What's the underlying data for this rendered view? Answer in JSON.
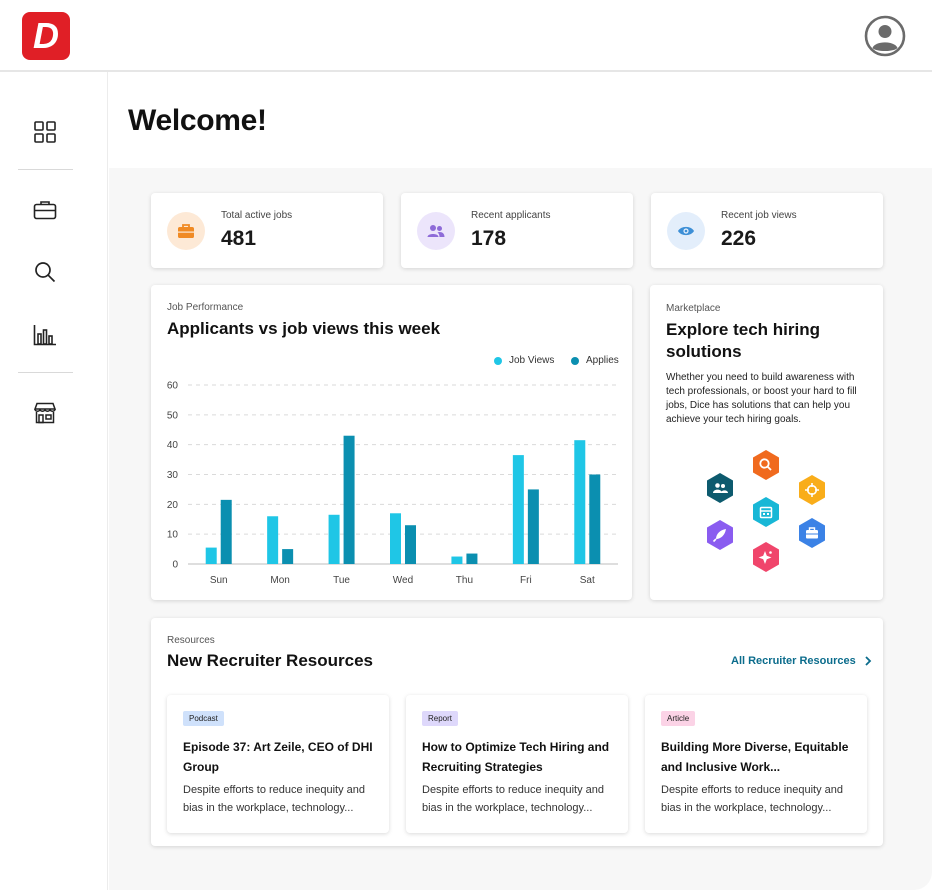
{
  "app": {
    "logo_letter": "D",
    "brand_color": "#e01f26"
  },
  "header": {
    "avatar_icon": "user-circle-icon"
  },
  "sidebar": {
    "items": [
      {
        "name": "dashboard",
        "icon": "grid-icon"
      },
      {
        "name": "jobs",
        "icon": "briefcase-icon"
      },
      {
        "name": "search",
        "icon": "search-icon"
      },
      {
        "name": "reports",
        "icon": "bar-chart-icon"
      },
      {
        "name": "marketplace",
        "icon": "storefront-icon"
      }
    ]
  },
  "page": {
    "title": "Welcome!"
  },
  "stats": [
    {
      "label": "Total active jobs",
      "value": "481",
      "icon": "briefcase-icon",
      "color": "#f08a24"
    },
    {
      "label": "Recent applicants",
      "value": "178",
      "icon": "users-icon",
      "color": "#8e6bd8"
    },
    {
      "label": "Recent job views",
      "value": "226",
      "icon": "eye-icon",
      "color": "#3d8fd6"
    }
  ],
  "performance": {
    "kicker": "Job Performance",
    "title": "Applicants vs job views this week"
  },
  "chart_data": {
    "type": "bar",
    "title": "Applicants vs job views this week",
    "categories": [
      "Sun",
      "Mon",
      "Tue",
      "Wed",
      "Thu",
      "Fri",
      "Sat"
    ],
    "series": [
      {
        "name": "Job Views",
        "color": "#1fc6e6",
        "values": [
          5.5,
          16,
          16.5,
          17,
          2.5,
          36.5,
          41.5
        ]
      },
      {
        "name": "Applies",
        "color": "#0b8fb0",
        "values": [
          21.5,
          5,
          43,
          13,
          3.5,
          25,
          30
        ]
      }
    ],
    "yticks": [
      "0",
      "10",
      "20",
      "30",
      "40",
      "50",
      "60"
    ],
    "ylim": [
      0,
      60
    ],
    "grid": true,
    "legend_position": "top-right"
  },
  "marketplace": {
    "kicker": "Marketplace",
    "title": "Explore tech hiring solutions",
    "body": "Whether you need to build awareness with tech professionals, or boost your hard to fill jobs, Dice has solutions that can help you achieve your tech hiring goals.",
    "hex_icons": [
      {
        "icon": "search-icon",
        "color": "#f06a1e"
      },
      {
        "icon": "users-icon",
        "color": "#0d5a6e"
      },
      {
        "icon": "target-icon",
        "color": "#f9ad1a"
      },
      {
        "icon": "calendar-icon",
        "color": "#18b7d6"
      },
      {
        "icon": "rocket-icon",
        "color": "#8a5cf0"
      },
      {
        "icon": "briefcase-icon",
        "color": "#3b82e6"
      },
      {
        "icon": "sparkle-icon",
        "color": "#f0456b"
      }
    ]
  },
  "resources": {
    "kicker": "Resources",
    "title": "New Recruiter Resources",
    "all_link": "All Recruiter Resources",
    "items": [
      {
        "badge": "Podcast",
        "badge_color": "#cfe1fb",
        "title": "Episode 37: Art Zeile, CEO of DHI Group",
        "desc": "Despite efforts to reduce inequity and bias in the workplace, technology..."
      },
      {
        "badge": "Report",
        "badge_color": "#ded8fb",
        "title": "How to Optimize Tech Hiring and Recruiting Strategies",
        "desc": "Despite efforts to reduce inequity and bias in the workplace, technology..."
      },
      {
        "badge": "Article",
        "badge_color": "#fbd3e6",
        "title": "Building More Diverse, Equitable and Inclusive Work...",
        "desc": "Despite efforts to reduce inequity and bias in the workplace, technology..."
      }
    ]
  }
}
